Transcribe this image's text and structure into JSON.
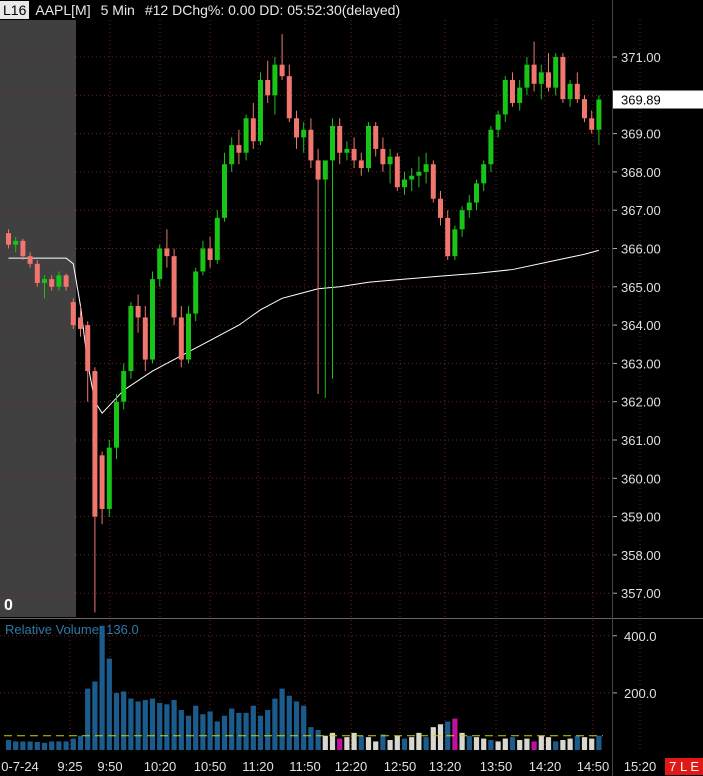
{
  "header": {
    "link_badge": "L16",
    "symbol": "AAPL[M]",
    "timeframe": "5 Min",
    "details": "#12 DChg%: 0.00 DD: 05:52:30(delayed)"
  },
  "premarket_badge": "0",
  "volume_label": "Relative Volume: 136.0",
  "corner_tag": "7 L E",
  "colors": {
    "up": "#18c418",
    "down": "#f07670",
    "vwap": "#ffffff",
    "volume": "#1c5c8c",
    "volume_low": "#d8d8d0",
    "volume_magenta": "#c010a0",
    "threshold": "#d0d000",
    "grid": "#7a2020",
    "premarket_shade": "#404040",
    "last_price_box": "#ffffff"
  },
  "chart_data": {
    "type": "candlestick",
    "symbol": "AAPL",
    "ylim": [
      356.5,
      371.5
    ],
    "y_ticks": [
      "371.00",
      "370.00",
      "369.00",
      "368.00",
      "367.00",
      "366.00",
      "365.00",
      "364.00",
      "363.00",
      "362.00",
      "361.00",
      "360.00",
      "359.00",
      "358.00",
      "357.00"
    ],
    "last_price": "369.89",
    "x_tick_labels": [
      "0-7-24",
      "9:25",
      "9:50",
      "10:20",
      "10:50",
      "11:20",
      "11:50",
      "12:20",
      "12:50",
      "13:20",
      "13:50",
      "14:20",
      "14:50",
      "15:20"
    ],
    "candles_ohlc": [
      [
        366.4,
        366.5,
        366.0,
        366.1
      ],
      [
        366.1,
        366.3,
        365.9,
        366.2
      ],
      [
        366.2,
        366.25,
        365.7,
        365.8
      ],
      [
        365.8,
        365.9,
        365.5,
        365.6
      ],
      [
        365.6,
        365.7,
        365.0,
        365.1
      ],
      [
        365.1,
        365.3,
        364.7,
        365.2
      ],
      [
        365.2,
        365.3,
        364.9,
        365.0
      ],
      [
        365.0,
        365.4,
        364.9,
        365.3
      ],
      [
        365.3,
        365.35,
        364.9,
        365.0
      ],
      [
        364.6,
        364.7,
        363.9,
        364.0
      ],
      [
        364.2,
        364.5,
        363.7,
        363.9
      ],
      [
        364.0,
        364.1,
        362.0,
        362.8
      ],
      [
        362.8,
        362.9,
        356.5,
        359.0
      ],
      [
        360.6,
        360.7,
        358.8,
        359.2
      ],
      [
        359.2,
        361.0,
        359.0,
        360.8
      ],
      [
        360.8,
        362.2,
        360.5,
        362.0
      ],
      [
        362.0,
        363.0,
        361.8,
        362.8
      ],
      [
        362.8,
        364.6,
        362.6,
        364.5
      ],
      [
        364.5,
        364.8,
        363.8,
        364.2
      ],
      [
        364.2,
        364.5,
        362.8,
        363.1
      ],
      [
        363.1,
        365.4,
        363.0,
        365.2
      ],
      [
        365.2,
        366.1,
        365.0,
        366.0
      ],
      [
        366.0,
        366.5,
        365.5,
        365.8
      ],
      [
        365.8,
        366.0,
        364.0,
        364.2
      ],
      [
        364.2,
        364.5,
        362.9,
        363.1
      ],
      [
        363.1,
        364.5,
        363.0,
        364.3
      ],
      [
        364.3,
        365.5,
        364.1,
        365.4
      ],
      [
        365.4,
        366.2,
        365.3,
        366.0
      ],
      [
        366.0,
        366.3,
        365.5,
        365.7
      ],
      [
        365.7,
        367.0,
        365.6,
        366.8
      ],
      [
        366.8,
        368.5,
        366.7,
        368.2
      ],
      [
        368.2,
        368.9,
        368.0,
        368.7
      ],
      [
        368.7,
        369.1,
        368.2,
        368.5
      ],
      [
        368.5,
        369.5,
        368.3,
        369.4
      ],
      [
        369.4,
        369.8,
        368.6,
        368.8
      ],
      [
        368.8,
        370.6,
        368.7,
        370.4
      ],
      [
        370.4,
        370.9,
        369.8,
        370.0
      ],
      [
        370.0,
        371.0,
        369.5,
        370.8
      ],
      [
        370.8,
        371.6,
        370.4,
        370.5
      ],
      [
        370.5,
        370.8,
        369.3,
        369.4
      ],
      [
        369.4,
        369.6,
        368.6,
        368.9
      ],
      [
        368.9,
        369.3,
        368.5,
        369.1
      ],
      [
        369.1,
        369.4,
        368.1,
        368.3
      ],
      [
        368.3,
        368.6,
        362.2,
        367.8
      ],
      [
        367.8,
        368.2,
        362.1,
        368.3
      ],
      [
        368.3,
        369.4,
        362.6,
        369.2
      ],
      [
        369.2,
        369.4,
        368.2,
        368.5
      ],
      [
        368.5,
        368.8,
        368.3,
        368.6
      ],
      [
        368.6,
        368.9,
        368.1,
        368.3
      ],
      [
        368.3,
        368.5,
        367.9,
        368.1
      ],
      [
        368.1,
        369.3,
        368.0,
        369.2
      ],
      [
        369.2,
        369.3,
        368.4,
        368.6
      ],
      [
        368.6,
        368.9,
        368.0,
        368.2
      ],
      [
        368.2,
        368.6,
        367.7,
        368.4
      ],
      [
        368.4,
        368.5,
        367.5,
        367.6
      ],
      [
        367.6,
        368.0,
        367.4,
        367.8
      ],
      [
        367.8,
        368.1,
        367.5,
        367.9
      ],
      [
        367.9,
        368.4,
        367.6,
        368.0
      ],
      [
        368.0,
        368.5,
        367.7,
        368.2
      ],
      [
        368.2,
        368.3,
        367.2,
        367.3
      ],
      [
        367.3,
        367.5,
        366.6,
        366.8
      ],
      [
        366.8,
        367.0,
        365.7,
        365.8
      ],
      [
        365.8,
        366.6,
        365.7,
        366.5
      ],
      [
        366.5,
        367.1,
        366.3,
        367.0
      ],
      [
        367.0,
        367.4,
        366.8,
        367.2
      ],
      [
        367.2,
        367.8,
        367.0,
        367.7
      ],
      [
        367.7,
        368.3,
        367.5,
        368.2
      ],
      [
        368.2,
        369.2,
        368.0,
        369.1
      ],
      [
        369.1,
        369.6,
        368.9,
        369.5
      ],
      [
        369.5,
        370.5,
        369.3,
        370.4
      ],
      [
        370.4,
        370.6,
        369.7,
        369.8
      ],
      [
        369.8,
        370.4,
        369.6,
        370.2
      ],
      [
        370.2,
        371.0,
        370.0,
        370.8
      ],
      [
        370.8,
        371.4,
        370.1,
        370.3
      ],
      [
        370.3,
        370.8,
        369.9,
        370.6
      ],
      [
        370.6,
        371.1,
        370.1,
        370.2
      ],
      [
        370.2,
        371.1,
        370.0,
        371.0
      ],
      [
        371.0,
        371.1,
        369.8,
        369.9
      ],
      [
        369.9,
        370.4,
        369.7,
        370.3
      ],
      [
        370.3,
        370.6,
        369.8,
        369.9
      ],
      [
        369.9,
        370.0,
        369.3,
        369.4
      ],
      [
        369.4,
        369.6,
        369.0,
        369.1
      ],
      [
        369.1,
        370.0,
        368.7,
        369.89
      ]
    ],
    "vwap": [
      [
        0,
        365.75
      ],
      [
        8,
        365.75
      ],
      [
        9,
        365.6
      ],
      [
        10,
        364.5
      ],
      [
        11,
        363.0
      ],
      [
        12,
        362.0
      ],
      [
        13,
        361.7
      ],
      [
        14,
        361.9
      ],
      [
        16,
        362.3
      ],
      [
        20,
        362.8
      ],
      [
        24,
        363.2
      ],
      [
        28,
        363.6
      ],
      [
        32,
        364.0
      ],
      [
        35,
        364.4
      ],
      [
        38,
        364.7
      ],
      [
        40,
        364.8
      ],
      [
        43,
        364.95
      ],
      [
        46,
        365.0
      ],
      [
        50,
        365.12
      ],
      [
        55,
        365.2
      ],
      [
        60,
        365.28
      ],
      [
        65,
        365.35
      ],
      [
        70,
        365.45
      ],
      [
        75,
        365.65
      ],
      [
        80,
        365.85
      ],
      [
        82,
        365.95
      ]
    ],
    "volume": {
      "ylim": [
        0,
        480
      ],
      "y_ticks": [
        "400.0",
        "200.0"
      ],
      "threshold": 50,
      "low_color_from_index": 43,
      "magenta_bars": [
        46,
        62,
        73
      ],
      "values": [
        35,
        30,
        30,
        30,
        28,
        25,
        30,
        30,
        30,
        40,
        50,
        215,
        240,
        435,
        320,
        200,
        205,
        180,
        170,
        175,
        180,
        165,
        160,
        175,
        140,
        120,
        155,
        125,
        135,
        100,
        120,
        145,
        130,
        130,
        155,
        120,
        140,
        180,
        215,
        190,
        170,
        155,
        80,
        70,
        50,
        60,
        40,
        45,
        60,
        50,
        45,
        30,
        55,
        35,
        50,
        40,
        45,
        60,
        45,
        80,
        90,
        100,
        110,
        60,
        50,
        45,
        40,
        35,
        30,
        40,
        45,
        35,
        40,
        30,
        50,
        45,
        30,
        35,
        40,
        50,
        45,
        40,
        50
      ]
    }
  }
}
